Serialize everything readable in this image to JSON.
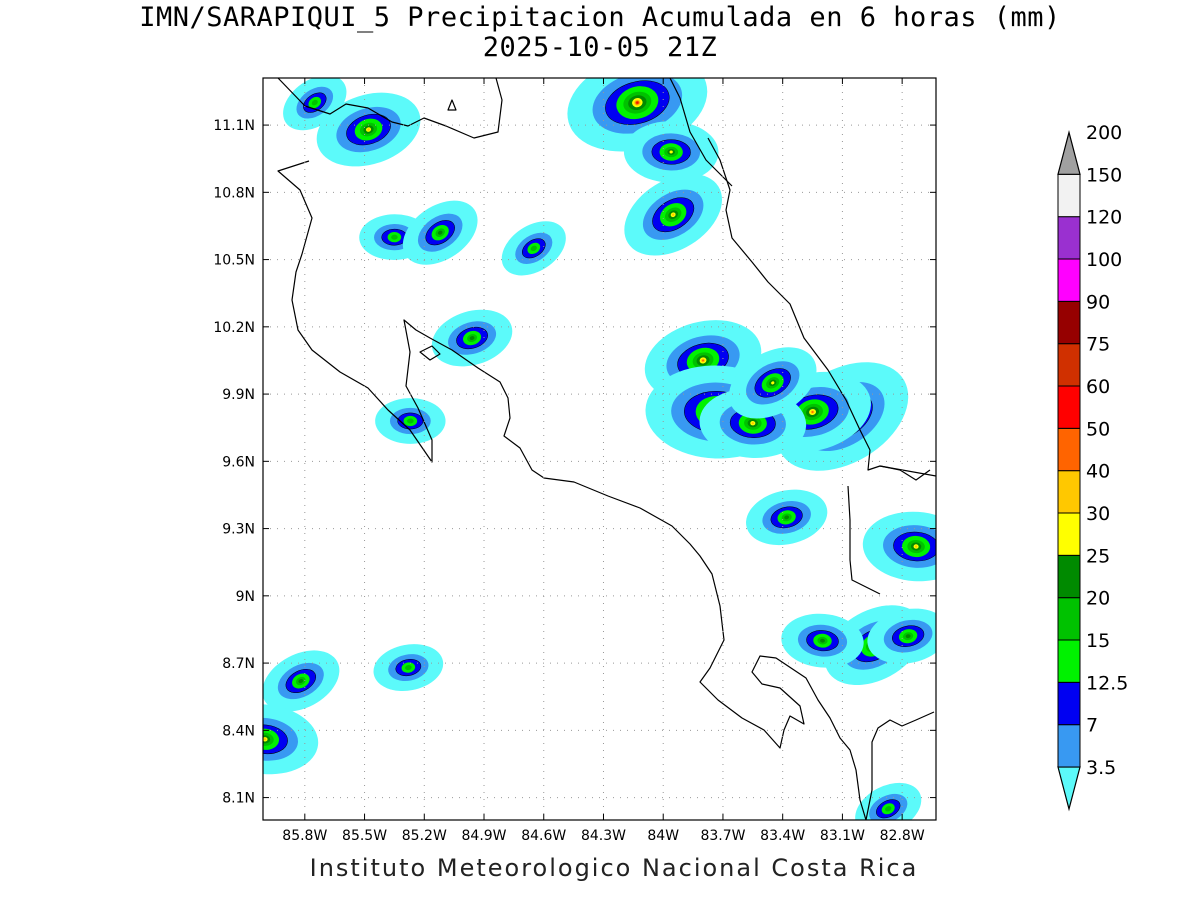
{
  "title_line1": "IMN/SARAPIQUI_5 Precipitacion Acumulada en 6 horas (mm)",
  "title_line2": "2025-10-05 21Z",
  "credit": "Instituto Meteorologico Nacional Costa Rica",
  "map": {
    "lon_range": [
      -86.01,
      -82.63
    ],
    "lat_range": [
      8.0,
      11.31
    ],
    "lat_ticks": [
      {
        "value": 11.1,
        "label": "11.1N"
      },
      {
        "value": 10.8,
        "label": "10.8N"
      },
      {
        "value": 10.5,
        "label": "10.5N"
      },
      {
        "value": 10.2,
        "label": "10.2N"
      },
      {
        "value": 9.9,
        "label": "9.9N"
      },
      {
        "value": 9.6,
        "label": "9.6N"
      },
      {
        "value": 9.3,
        "label": "9.3N"
      },
      {
        "value": 9.0,
        "label": "9N"
      },
      {
        "value": 8.7,
        "label": "8.7N"
      },
      {
        "value": 8.4,
        "label": "8.4N"
      },
      {
        "value": 8.1,
        "label": "8.1N"
      }
    ],
    "lon_ticks": [
      {
        "value": -85.8,
        "label": "85.8W"
      },
      {
        "value": -85.5,
        "label": "85.5W"
      },
      {
        "value": -85.2,
        "label": "85.2W"
      },
      {
        "value": -84.9,
        "label": "84.9W"
      },
      {
        "value": -84.6,
        "label": "84.6W"
      },
      {
        "value": -84.3,
        "label": "84.3W"
      },
      {
        "value": -84.0,
        "label": "84W"
      },
      {
        "value": -83.7,
        "label": "83.7W"
      },
      {
        "value": -83.4,
        "label": "83.4W"
      },
      {
        "value": -83.1,
        "label": "83.1W"
      },
      {
        "value": -82.8,
        "label": "82.8W"
      }
    ],
    "grid": true
  },
  "legend": {
    "colors": [
      "#5cfafa",
      "#3899f2",
      "#0000f2",
      "#00f200",
      "#00c200",
      "#008a00",
      "#ffff00",
      "#ffc800",
      "#ff6400",
      "#ff0000",
      "#d03000",
      "#960000",
      "#ff00ff",
      "#9a30d0",
      "#f2f2f2",
      "#a0a0a0"
    ],
    "labels": [
      "3.5",
      "7",
      "12.5",
      "15",
      "20",
      "25",
      "30",
      "40",
      "50",
      "60",
      "75",
      "90",
      "100",
      "120",
      "150",
      "200"
    ]
  },
  "chart_data": {
    "type": "heatmap",
    "title": "IMN/SARAPIQUI_5 Precipitacion Acumulada en 6 horas (mm)",
    "subtitle": "2025-10-05 21Z",
    "xlabel": "",
    "ylabel": "",
    "x_range": [
      -86.01,
      -82.63
    ],
    "y_range": [
      8.0,
      11.31
    ],
    "levels": [
      3.5,
      7,
      12.5,
      15,
      20,
      25,
      30,
      40,
      50,
      60,
      75,
      90,
      100,
      120,
      150,
      200
    ],
    "cells": [
      {
        "lon": -85.75,
        "lat": 11.2,
        "level": 4
      },
      {
        "lon": -85.48,
        "lat": 11.08,
        "level": 7
      },
      {
        "lon": -85.35,
        "lat": 10.6,
        "level": 4
      },
      {
        "lon": -85.12,
        "lat": 10.62,
        "level": 5
      },
      {
        "lon": -84.96,
        "lat": 10.15,
        "level": 5
      },
      {
        "lon": -85.27,
        "lat": 9.78,
        "level": 4
      },
      {
        "lon": -84.65,
        "lat": 10.55,
        "level": 4
      },
      {
        "lon": -84.13,
        "lat": 11.2,
        "level": 10
      },
      {
        "lon": -83.96,
        "lat": 10.98,
        "level": 6
      },
      {
        "lon": -83.95,
        "lat": 10.7,
        "level": 7
      },
      {
        "lon": -83.8,
        "lat": 10.05,
        "level": 8
      },
      {
        "lon": -83.73,
        "lat": 9.82,
        "level": 10
      },
      {
        "lon": -83.1,
        "lat": 9.8,
        "level": 10
      },
      {
        "lon": -83.25,
        "lat": 9.82,
        "level": 8
      },
      {
        "lon": -83.55,
        "lat": 9.77,
        "level": 7
      },
      {
        "lon": -83.45,
        "lat": 9.95,
        "level": 6
      },
      {
        "lon": -83.38,
        "lat": 9.35,
        "level": 5
      },
      {
        "lon": -82.73,
        "lat": 9.22,
        "level": 7
      },
      {
        "lon": -82.94,
        "lat": 8.78,
        "level": 7
      },
      {
        "lon": -82.77,
        "lat": 8.82,
        "level": 5
      },
      {
        "lon": -83.2,
        "lat": 8.8,
        "level": 5
      },
      {
        "lon": -85.82,
        "lat": 8.62,
        "level": 5
      },
      {
        "lon": -85.28,
        "lat": 8.68,
        "level": 4
      },
      {
        "lon": -86.0,
        "lat": 8.36,
        "level": 7
      },
      {
        "lon": -82.87,
        "lat": 8.05,
        "level": 4
      }
    ]
  }
}
